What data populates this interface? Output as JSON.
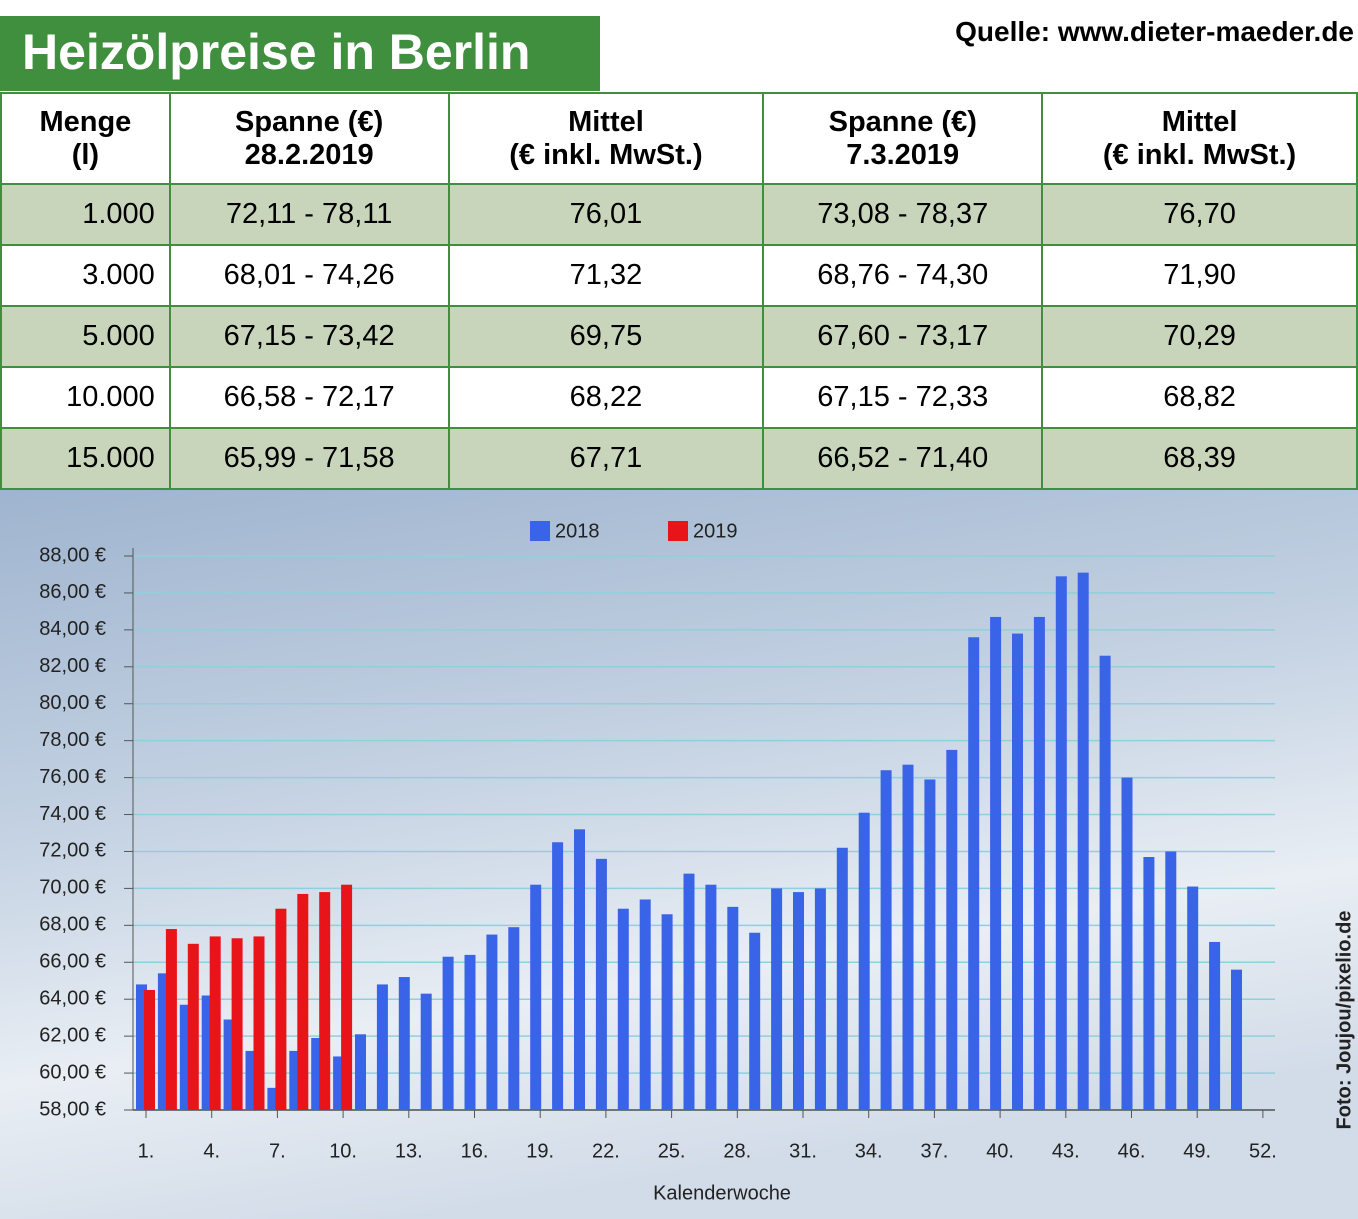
{
  "header": {
    "title": "Heizölpreise in Berlin",
    "source": "Quelle: www.dieter-maeder.de"
  },
  "table": {
    "columns": [
      [
        "Menge",
        "(l)"
      ],
      [
        "Spanne (€)",
        "28.2.2019"
      ],
      [
        "Mittel",
        "(€ inkl. MwSt.)"
      ],
      [
        "Spanne (€)",
        "7.3.2019"
      ],
      [
        "Mittel",
        "(€ inkl. MwSt.)"
      ]
    ],
    "rows": [
      [
        "1.000",
        "72,11 - 78,11",
        "76,01",
        "73,08 - 78,37",
        "76,70"
      ],
      [
        "3.000",
        "68,01 - 74,26",
        "71,32",
        "68,76 - 74,30",
        "71,90"
      ],
      [
        "5.000",
        "67,15 - 73,42",
        "69,75",
        "67,60 - 73,17",
        "70,29"
      ],
      [
        "10.000",
        "66,58 - 72,17",
        "68,22",
        "67,15 - 72,33",
        "68,82"
      ],
      [
        "15.000",
        "65,99 - 71,58",
        "67,71",
        "66,52 - 71,40",
        "68,39"
      ]
    ]
  },
  "chart_data": {
    "type": "bar",
    "x_label": "Kalenderwoche",
    "grid": true,
    "categories": [
      "1.",
      null,
      null,
      "4.",
      null,
      null,
      "7.",
      null,
      null,
      "10.",
      null,
      null,
      "13.",
      null,
      null,
      "16.",
      null,
      null,
      "19.",
      null,
      null,
      "22.",
      null,
      null,
      "25.",
      null,
      null,
      "28.",
      null,
      null,
      "31.",
      null,
      null,
      "34.",
      null,
      null,
      "37.",
      null,
      null,
      "40.",
      null,
      null,
      "43.",
      null,
      null,
      "46.",
      null,
      null,
      "49.",
      null,
      null,
      "52."
    ],
    "series": [
      {
        "name": "2018",
        "color": "#3a64e8",
        "values": [
          64.8,
          65.4,
          63.7,
          64.2,
          62.9,
          61.2,
          59.2,
          61.2,
          61.9,
          60.9,
          62.1,
          64.8,
          65.2,
          64.3,
          66.3,
          66.4,
          67.5,
          67.9,
          70.2,
          72.5,
          73.2,
          71.6,
          68.9,
          69.4,
          68.6,
          70.8,
          70.2,
          69.0,
          67.6,
          70.0,
          69.8,
          70.0,
          72.2,
          74.1,
          76.4,
          76.7,
          75.9,
          77.5,
          83.6,
          84.7,
          83.8,
          84.7,
          86.9,
          87.1,
          82.6,
          76.0,
          71.7,
          72.0,
          70.1,
          67.1,
          65.6,
          null
        ]
      },
      {
        "name": "2019",
        "color": "#e8141a",
        "values": [
          64.5,
          67.8,
          67.0,
          67.4,
          67.3,
          67.4,
          68.9,
          69.7,
          69.8,
          70.2,
          null,
          null,
          null,
          null,
          null,
          null,
          null,
          null,
          null,
          null,
          null,
          null,
          null,
          null,
          null,
          null,
          null,
          null,
          null,
          null,
          null,
          null,
          null,
          null,
          null,
          null,
          null,
          null,
          null,
          null,
          null,
          null,
          null,
          null,
          null,
          null,
          null,
          null,
          null,
          null,
          null,
          null
        ]
      }
    ],
    "ylim": [
      58,
      88
    ],
    "yticks": [
      {
        "value": 58,
        "label": "58,00 €"
      },
      {
        "value": 60,
        "label": "60,00 €"
      },
      {
        "value": 62,
        "label": "62,00 €"
      },
      {
        "value": 64,
        "label": "64,00 €"
      },
      {
        "value": 66,
        "label": "66,00 €"
      },
      {
        "value": 68,
        "label": "68,00 €"
      },
      {
        "value": 70,
        "label": "70,00 €"
      },
      {
        "value": 72,
        "label": "72,00 €"
      },
      {
        "value": 74,
        "label": "74,00 €"
      },
      {
        "value": 76,
        "label": "76,00 €"
      },
      {
        "value": 78,
        "label": "78,00 €"
      },
      {
        "value": 80,
        "label": "80,00 €"
      },
      {
        "value": 82,
        "label": "82,00 €"
      },
      {
        "value": 84,
        "label": "84,00 €"
      },
      {
        "value": 86,
        "label": "86,00 €"
      },
      {
        "value": 88,
        "label": "88,00 €"
      }
    ]
  },
  "photo_credit": "Foto: Joujou/pixelio.de"
}
